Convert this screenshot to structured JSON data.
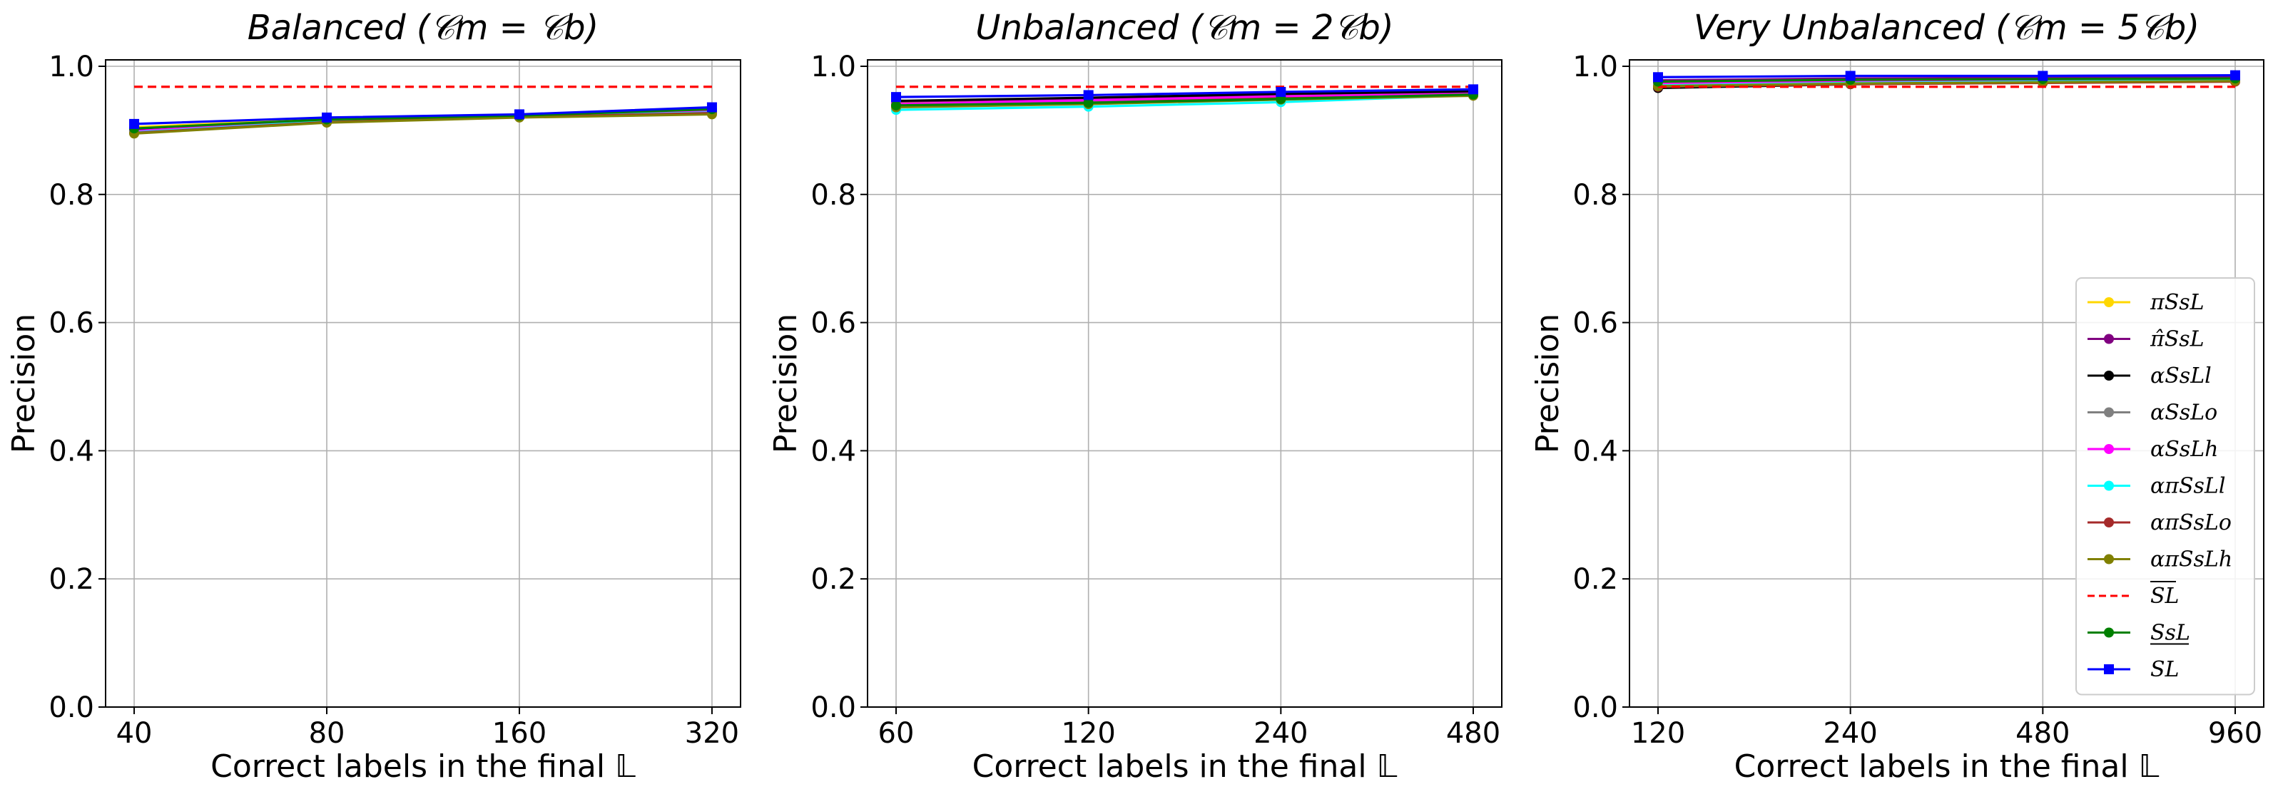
{
  "chart_data": [
    {
      "type": "line",
      "title": "Balanced  (𝒞m = 𝒞b)",
      "xlabel": "Correct labels in the final 𝕃",
      "ylabel": "Precision",
      "x": [
        "40",
        "80",
        "160",
        "320"
      ],
      "yticks": [
        "0.0",
        "0.2",
        "0.4",
        "0.6",
        "0.8",
        "1.0"
      ],
      "ylim": [
        0.0,
        1.01
      ],
      "grid": true,
      "series": [
        {
          "name": "πSsL",
          "color": "#ffd700",
          "values": [
            0.905,
            0.918,
            0.923,
            0.932
          ]
        },
        {
          "name": "π̂SsL",
          "color": "#800080",
          "values": [
            0.9,
            0.916,
            0.922,
            0.93
          ]
        },
        {
          "name": "αSsLl",
          "color": "#000000",
          "values": [
            0.902,
            0.917,
            0.923,
            0.931
          ]
        },
        {
          "name": "αSsLo",
          "color": "#808080",
          "values": [
            0.898,
            0.915,
            0.922,
            0.929
          ]
        },
        {
          "name": "αSsLh",
          "color": "#ff00ff",
          "values": [
            0.899,
            0.916,
            0.922,
            0.93
          ]
        },
        {
          "name": "απSsLl",
          "color": "#00ffff",
          "values": [
            0.897,
            0.914,
            0.921,
            0.928
          ]
        },
        {
          "name": "απSsLo",
          "color": "#a52a2a",
          "values": [
            0.896,
            0.913,
            0.921,
            0.927
          ]
        },
        {
          "name": "απSsLh",
          "color": "#808000",
          "values": [
            0.895,
            0.912,
            0.92,
            0.925
          ]
        },
        {
          "name": "SL (upper)",
          "color": "#ff0000",
          "dashed": true,
          "values": [
            0.968,
            0.968,
            0.968,
            0.968
          ]
        },
        {
          "name": "SsL (lower)",
          "color": "#008000",
          "values": [
            0.903,
            0.917,
            0.923,
            0.933
          ]
        },
        {
          "name": "SL",
          "color": "#0000ff",
          "marker": "square",
          "values": [
            0.91,
            0.92,
            0.925,
            0.936
          ]
        }
      ]
    },
    {
      "type": "line",
      "title": "Unbalanced  (𝒞m = 2𝒞b)",
      "xlabel": "Correct labels in the final 𝕃",
      "ylabel": "Precision",
      "x": [
        "60",
        "120",
        "240",
        "480"
      ],
      "yticks": [
        "0.0",
        "0.2",
        "0.4",
        "0.6",
        "0.8",
        "1.0"
      ],
      "ylim": [
        0.0,
        1.01
      ],
      "grid": true,
      "series": [
        {
          "name": "πSsL",
          "color": "#ffd700",
          "values": [
            0.942,
            0.948,
            0.954,
            0.958
          ]
        },
        {
          "name": "π̂SsL",
          "color": "#800080",
          "values": [
            0.945,
            0.95,
            0.956,
            0.96
          ]
        },
        {
          "name": "αSsLl",
          "color": "#000000",
          "values": [
            0.946,
            0.951,
            0.957,
            0.961
          ]
        },
        {
          "name": "αSsLo",
          "color": "#808080",
          "values": [
            0.94,
            0.946,
            0.953,
            0.957
          ]
        },
        {
          "name": "αSsLh",
          "color": "#ff00ff",
          "values": [
            0.941,
            0.947,
            0.953,
            0.957
          ]
        },
        {
          "name": "απSsLl",
          "color": "#00ffff",
          "values": [
            0.932,
            0.937,
            0.944,
            0.955
          ]
        },
        {
          "name": "απSsLo",
          "color": "#a52a2a",
          "values": [
            0.938,
            0.943,
            0.95,
            0.955
          ]
        },
        {
          "name": "απSsLh",
          "color": "#808000",
          "values": [
            0.936,
            0.941,
            0.948,
            0.954
          ]
        },
        {
          "name": "SL (upper)",
          "color": "#ff0000",
          "dashed": true,
          "values": [
            0.968,
            0.968,
            0.968,
            0.968
          ]
        },
        {
          "name": "SsL (lower)",
          "color": "#008000",
          "values": [
            0.939,
            0.943,
            0.949,
            0.956
          ]
        },
        {
          "name": "SL",
          "color": "#0000ff",
          "marker": "square",
          "values": [
            0.952,
            0.955,
            0.96,
            0.964
          ]
        }
      ]
    },
    {
      "type": "line",
      "title": "Very  Unbalanced  (𝒞m = 5𝒞b)",
      "xlabel": "Correct labels in the final 𝕃",
      "ylabel": "Precision",
      "x": [
        "120",
        "240",
        "480",
        "960"
      ],
      "yticks": [
        "0.0",
        "0.2",
        "0.4",
        "0.6",
        "0.8",
        "1.0"
      ],
      "ylim": [
        0.0,
        1.01
      ],
      "grid": true,
      "legend_position": "lower-right",
      "series": [
        {
          "name": "πSsL",
          "color": "#ffd700",
          "values": [
            0.975,
            0.978,
            0.979,
            0.98
          ]
        },
        {
          "name": "π̂SsL",
          "color": "#800080",
          "values": [
            0.978,
            0.981,
            0.982,
            0.983
          ]
        },
        {
          "name": "αSsLl",
          "color": "#000000",
          "values": [
            0.966,
            0.972,
            0.975,
            0.978
          ]
        },
        {
          "name": "αSsLo",
          "color": "#808080",
          "values": [
            0.972,
            0.976,
            0.978,
            0.98
          ]
        },
        {
          "name": "αSsLh",
          "color": "#ff00ff",
          "values": [
            0.974,
            0.977,
            0.979,
            0.981
          ]
        },
        {
          "name": "απSsLl",
          "color": "#00ffff",
          "values": [
            0.97,
            0.974,
            0.976,
            0.978
          ]
        },
        {
          "name": "απSsLo",
          "color": "#a52a2a",
          "values": [
            0.968,
            0.972,
            0.974,
            0.976
          ]
        },
        {
          "name": "απSsLh",
          "color": "#808000",
          "values": [
            0.969,
            0.973,
            0.975,
            0.977
          ]
        },
        {
          "name": "SL (upper)",
          "color": "#ff0000",
          "dashed": true,
          "values": [
            0.968,
            0.968,
            0.968,
            0.968
          ]
        },
        {
          "name": "SsL (lower)",
          "color": "#008000",
          "values": [
            0.976,
            0.979,
            0.98,
            0.981
          ]
        },
        {
          "name": "SL",
          "color": "#0000ff",
          "marker": "square",
          "values": [
            0.983,
            0.985,
            0.985,
            0.986
          ]
        }
      ]
    }
  ]
}
